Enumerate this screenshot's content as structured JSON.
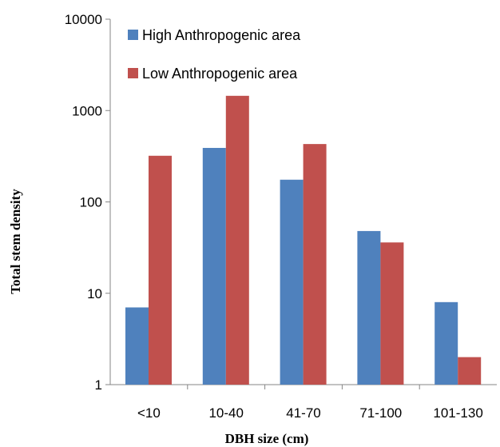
{
  "chart_data": {
    "type": "bar",
    "title": "",
    "xlabel": "DBH size (cm)",
    "ylabel": "Total stem density",
    "y_scale": "log",
    "ylim": [
      1,
      10000
    ],
    "y_ticks": [
      "1",
      "10",
      "100",
      "1000",
      "10000"
    ],
    "grid": false,
    "legend_position": "top-right",
    "categories": [
      "<10",
      "10-40",
      "41-70",
      "71-100",
      "101-130"
    ],
    "series": [
      {
        "name": "High Anthropogenic area",
        "color": "#4f81bd",
        "values": [
          7,
          390,
          175,
          48,
          8
        ]
      },
      {
        "name": "Low Anthropogenic area",
        "color": "#c0504d",
        "values": [
          320,
          1450,
          430,
          36,
          2
        ]
      }
    ]
  }
}
